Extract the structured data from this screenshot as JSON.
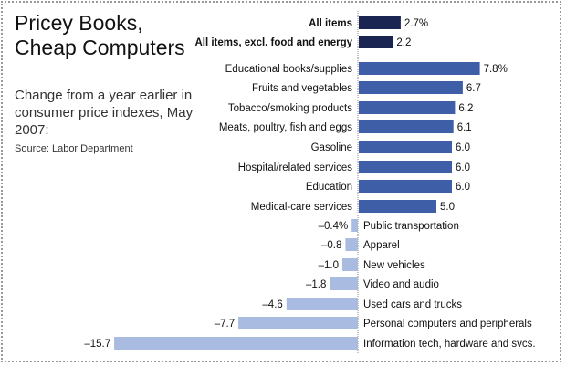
{
  "chart_data": {
    "type": "bar",
    "orientation": "horizontal",
    "title": "Pricey Books, Cheap Computers",
    "subtitle": "Change from a year earlier in consumer price indexes, May 2007:",
    "source": "Source: Labor Department",
    "unit": "%",
    "categories": [
      "All items",
      "All items, excl. food and energy",
      "Educational books/supplies",
      "Fruits and vegetables",
      "Tobacco/smoking products",
      "Meats, poultry, fish and eggs",
      "Gasoline",
      "Hospital/related services",
      "Education",
      "Medical-care services",
      "Public transportation",
      "Apparel",
      "New vehicles",
      "Video and audio",
      "Used cars and trucks",
      "Personal computers and peripherals",
      "Information tech, hardware and svcs."
    ],
    "values": [
      2.7,
      2.2,
      7.8,
      6.7,
      6.2,
      6.1,
      6.0,
      6.0,
      6.0,
      5.0,
      -0.4,
      -0.8,
      -1.0,
      -1.8,
      -4.6,
      -7.7,
      -15.7
    ],
    "value_labels": [
      "2.7%",
      "2.2",
      "7.8%",
      "6.7",
      "6.2",
      "6.1",
      "6.0",
      "6.0",
      "6.0",
      "5.0",
      "–0.4%",
      "–0.8",
      "–1.0",
      "–1.8",
      "–4.6",
      "–7.7",
      "–15.7"
    ],
    "bold_categories": [
      "All items",
      "All items, excl. food and energy"
    ],
    "colors": {
      "summary": "#1b2552",
      "positive": "#3f5ea8",
      "negative": "#aabbe2"
    }
  }
}
